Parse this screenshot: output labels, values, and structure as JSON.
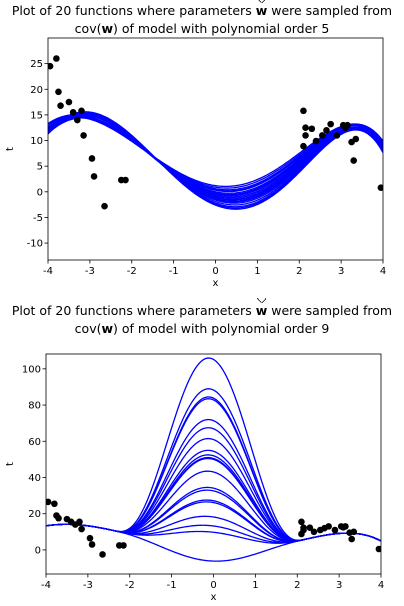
{
  "chart_data": [
    {
      "type": "line",
      "title_parts": {
        "pre": "Plot of 20 functions where parameters ",
        "hat": "w",
        "mid": " were sampled from",
        "line2_pre": "cov(",
        "bold": "w",
        "line2_post": ") of model with polynomial order 5"
      },
      "xlabel": "x",
      "ylabel": "t",
      "xlim": [
        -4,
        4
      ],
      "ylim": [
        -13.3,
        30
      ],
      "xticks": [
        -4,
        -3,
        -2,
        -1,
        0,
        1,
        2,
        3,
        4
      ],
      "yticks": [
        -10,
        -5,
        0,
        5,
        10,
        15,
        20,
        25
      ],
      "line_color": "#0000ff",
      "point_color": "#000000",
      "num_functions": 20,
      "points": {
        "x": [
          -3.95,
          -3.8,
          -3.75,
          -3.7,
          -3.5,
          -3.4,
          -3.3,
          -3.2,
          -3.15,
          -2.95,
          -2.9,
          -2.65,
          -2.25,
          -2.15,
          2.1,
          2.1,
          2.15,
          2.15,
          2.3,
          2.4,
          2.55,
          2.65,
          2.75,
          2.9,
          3.05,
          3.1,
          3.15,
          3.25,
          3.3,
          3.35,
          3.95
        ],
        "y": [
          24.5,
          26.0,
          19.5,
          16.8,
          17.5,
          15.5,
          14.0,
          15.8,
          11.0,
          6.5,
          3.0,
          -2.8,
          2.3,
          2.3,
          15.8,
          8.9,
          11.0,
          12.5,
          12.3,
          9.9,
          11.0,
          12.0,
          13.2,
          11.0,
          13.0,
          12.5,
          13.0,
          9.7,
          6.1,
          10.3,
          0.8
        ]
      },
      "curves": [
        {
          "coef": [
            -0.3,
            -1.86,
            2.56,
            0.26,
            -0.117,
            -0.01
          ]
        },
        {
          "coef": [
            -1.6,
            -2.69,
            2.82,
            0.356,
            -0.131,
            -0.013
          ]
        },
        {
          "coef": [
            0.3,
            -1.58,
            2.47,
            0.22,
            -0.112,
            -0.009
          ]
        },
        {
          "coef": [
            -2.2,
            -2.99,
            2.98,
            0.392,
            -0.139,
            -0.0145
          ]
        },
        {
          "coef": [
            0.9,
            -1.27,
            2.33,
            0.185,
            -0.105,
            -0.0082
          ]
        },
        {
          "coef": [
            -1.0,
            -2.27,
            2.66,
            0.309,
            -0.123,
            -0.0117
          ]
        },
        {
          "coef": [
            -2.6,
            -3.2,
            3.08,
            0.41,
            -0.145,
            -0.015
          ]
        },
        {
          "coef": [
            0.0,
            -1.72,
            2.52,
            0.24,
            -0.114,
            -0.0095
          ]
        },
        {
          "coef": [
            -1.3,
            -2.47,
            2.76,
            0.33,
            -0.127,
            -0.0124
          ]
        },
        {
          "coef": [
            0.6,
            -1.43,
            2.4,
            0.2,
            -0.108,
            -0.0088
          ]
        },
        {
          "coef": [
            -1.9,
            -2.84,
            2.9,
            0.37,
            -0.135,
            -0.0138
          ]
        },
        {
          "coef": [
            -0.6,
            -2.06,
            2.6,
            0.28,
            -0.12,
            -0.011
          ]
        },
        {
          "coef": [
            1.2,
            -1.14,
            2.28,
            0.17,
            -0.102,
            -0.0078
          ]
        },
        {
          "coef": [
            -0.8,
            -2.17,
            2.63,
            0.295,
            -0.121,
            -0.0114
          ]
        },
        {
          "coef": [
            -1.4,
            -2.58,
            2.79,
            0.34,
            -0.129,
            -0.0128
          ]
        },
        {
          "coef": [
            -0.2,
            -1.8,
            2.55,
            0.25,
            -0.116,
            -0.0098
          ]
        },
        {
          "coef": [
            -2.4,
            -3.1,
            3.03,
            0.4,
            -0.142,
            -0.0148
          ]
        },
        {
          "coef": [
            0.4,
            -1.52,
            2.45,
            0.21,
            -0.11,
            -0.009
          ]
        },
        {
          "coef": [
            -1.1,
            -2.36,
            2.7,
            0.32,
            -0.125,
            -0.012
          ]
        },
        {
          "coef": [
            -0.4,
            -1.95,
            2.58,
            0.265,
            -0.118,
            -0.0105
          ]
        }
      ]
    },
    {
      "type": "line",
      "title_parts": {
        "pre": "Plot of 20 functions where parameters ",
        "hat": "w",
        "mid": " were sampled from",
        "line2_pre": "cov(",
        "bold": "w",
        "line2_post": ") of model with polynomial order 9"
      },
      "xlabel": "x",
      "ylabel": "t",
      "xlim": [
        -4,
        4
      ],
      "ylim": [
        -13.3,
        108.2
      ],
      "xticks": [
        -4,
        -3,
        -2,
        -1,
        0,
        1,
        2,
        3,
        4
      ],
      "yticks": [
        0,
        20,
        40,
        60,
        80,
        100
      ],
      "line_color": "#0000ff",
      "point_color": "#000000",
      "num_functions": 20,
      "points": {
        "x": [
          -3.95,
          -3.8,
          -3.75,
          -3.7,
          -3.5,
          -3.4,
          -3.3,
          -3.2,
          -3.15,
          -2.95,
          -2.9,
          -2.65,
          -2.25,
          -2.15,
          2.1,
          2.1,
          2.15,
          2.15,
          2.3,
          2.4,
          2.55,
          2.65,
          2.75,
          2.9,
          3.05,
          3.1,
          3.15,
          3.25,
          3.3,
          3.35,
          3.95
        ],
        "y": [
          26.5,
          25.5,
          19.0,
          17.5,
          17.0,
          15.5,
          14.0,
          15.5,
          11.5,
          6.5,
          3.0,
          -2.5,
          2.5,
          2.5,
          15.5,
          8.8,
          11.0,
          12.3,
          12.3,
          10.0,
          11.0,
          12.0,
          13.0,
          11.0,
          13.0,
          12.5,
          13.0,
          9.5,
          6.0,
          10.0,
          0.5
        ]
      },
      "curves": [
        {
          "peak": 107.5
        },
        {
          "peak": 90.5
        },
        {
          "peak": 86.0
        },
        {
          "peak": 85.0
        },
        {
          "peak": 73.5
        },
        {
          "peak": 69.0
        },
        {
          "peak": 63.0
        },
        {
          "peak": 56.5
        },
        {
          "peak": 54.0
        },
        {
          "peak": 52.5
        },
        {
          "peak": 52.0
        },
        {
          "peak": 45.0
        },
        {
          "peak": 36.0
        },
        {
          "peak": 34.5
        },
        {
          "peak": 29.0
        },
        {
          "peak": 28.0
        },
        {
          "peak": 20.0
        },
        {
          "peak": 15.0
        },
        {
          "peak": 11.5
        },
        {
          "peak": -4.5
        }
      ]
    }
  ]
}
